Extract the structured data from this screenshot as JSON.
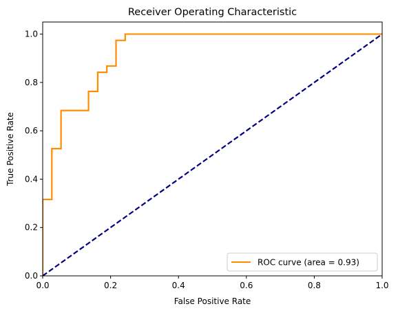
{
  "chart_data": {
    "type": "line",
    "title": "Receiver Operating Characteristic",
    "xlabel": "False Positive Rate",
    "ylabel": "True Positive Rate",
    "xlim": [
      0.0,
      1.0
    ],
    "ylim": [
      0.0,
      1.05
    ],
    "x_ticks": [
      "0.0",
      "0.2",
      "0.4",
      "0.6",
      "0.8",
      "1.0"
    ],
    "y_ticks": [
      "0.0",
      "0.2",
      "0.4",
      "0.6",
      "0.8",
      "1.0"
    ],
    "grid": false,
    "legend_position": "lower right",
    "series": [
      {
        "name": "ROC curve (area = 0.93)",
        "color": "#ff8c00",
        "style": "solid",
        "x": [
          0.0,
          0.0,
          0.0,
          0.027,
          0.027,
          0.054,
          0.054,
          0.135,
          0.135,
          0.162,
          0.162,
          0.189,
          0.189,
          0.216,
          0.216,
          0.243,
          0.243,
          1.0
        ],
        "y": [
          0.0,
          0.316,
          0.316,
          0.316,
          0.526,
          0.526,
          0.684,
          0.684,
          0.763,
          0.763,
          0.842,
          0.842,
          0.868,
          0.868,
          0.974,
          0.974,
          1.0,
          1.0
        ]
      },
      {
        "color": "#000080",
        "style": "dashed",
        "x": [
          0.0,
          1.0
        ],
        "y": [
          0.0,
          1.0
        ]
      }
    ]
  }
}
